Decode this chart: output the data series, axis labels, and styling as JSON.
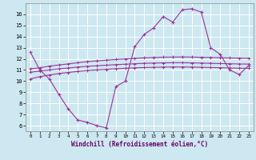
{
  "xlabel": "Windchill (Refroidissement éolien,°C)",
  "bg_color": "#cde8f0",
  "grid_color": "#ffffff",
  "line_color": "#993399",
  "xlim": [
    -0.5,
    23.5
  ],
  "ylim": [
    5.5,
    17.0
  ],
  "yticks": [
    6,
    7,
    8,
    9,
    10,
    11,
    12,
    13,
    14,
    15,
    16
  ],
  "xticks": [
    0,
    1,
    2,
    3,
    4,
    5,
    6,
    7,
    8,
    9,
    10,
    11,
    12,
    13,
    14,
    15,
    16,
    17,
    18,
    19,
    20,
    21,
    22,
    23
  ],
  "curve1_x": [
    0,
    1,
    2,
    3,
    4,
    5,
    6,
    7,
    8,
    9,
    10,
    11,
    12,
    13,
    14,
    15,
    16,
    17,
    18,
    19,
    20,
    21,
    22,
    23
  ],
  "curve1_y": [
    12.6,
    11.0,
    10.2,
    8.8,
    7.5,
    6.5,
    6.3,
    6.0,
    5.8,
    9.5,
    10.0,
    13.1,
    14.2,
    14.8,
    15.8,
    15.3,
    16.4,
    16.5,
    16.2,
    13.0,
    12.4,
    11.0,
    10.6,
    11.4
  ],
  "curve2_x": [
    0,
    1,
    2,
    3,
    4,
    5,
    6,
    7,
    8,
    9,
    10,
    11,
    12,
    13,
    14,
    15,
    16,
    17,
    18,
    19,
    20,
    21,
    22,
    23
  ],
  "curve2_y": [
    11.1,
    11.2,
    11.35,
    11.45,
    11.55,
    11.65,
    11.75,
    11.82,
    11.88,
    11.94,
    11.99,
    12.04,
    12.09,
    12.12,
    12.15,
    12.16,
    12.17,
    12.16,
    12.14,
    12.12,
    12.1,
    12.08,
    12.06,
    12.05
  ],
  "curve3_x": [
    0,
    1,
    2,
    3,
    4,
    5,
    6,
    7,
    8,
    9,
    10,
    11,
    12,
    13,
    14,
    15,
    16,
    17,
    18,
    19,
    20,
    21,
    22,
    23
  ],
  "curve3_y": [
    10.8,
    10.9,
    11.0,
    11.1,
    11.18,
    11.26,
    11.33,
    11.38,
    11.43,
    11.48,
    11.52,
    11.56,
    11.6,
    11.62,
    11.64,
    11.65,
    11.65,
    11.64,
    11.62,
    11.6,
    11.58,
    11.56,
    11.54,
    11.53
  ],
  "curve4_x": [
    0,
    1,
    2,
    3,
    4,
    5,
    6,
    7,
    8,
    9,
    10,
    11,
    12,
    13,
    14,
    15,
    16,
    17,
    18,
    19,
    20,
    21,
    22,
    23
  ],
  "curve4_y": [
    10.2,
    10.4,
    10.55,
    10.68,
    10.78,
    10.87,
    10.95,
    11.01,
    11.06,
    11.11,
    11.15,
    11.19,
    11.22,
    11.24,
    11.26,
    11.27,
    11.27,
    11.26,
    11.24,
    11.22,
    11.2,
    11.18,
    11.16,
    11.15
  ]
}
